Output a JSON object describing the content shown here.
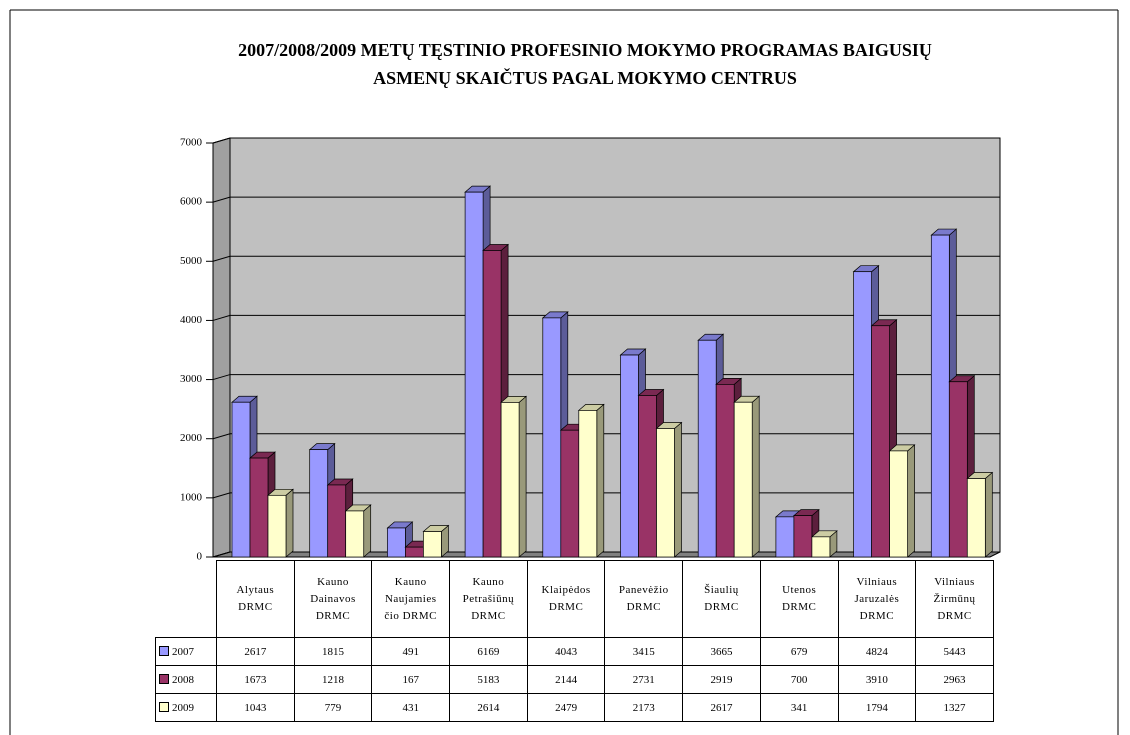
{
  "chart_data": {
    "type": "bar",
    "title": "2007/2008/2009 METŲ TĘSTINIO PROFESINIO MOKYMO PROGRAMAS BAIGUSIŲ\nASMENŲ SKAIČTUS PAGAL MOKYMO CENTRUS",
    "categories": [
      "Alytaus\nDRMC",
      "Kauno\nDainavos\nDRMC",
      "Kauno\nNaujamies\nčio DRMC",
      "Kauno\nPetrašiūnų\nDRMC",
      "Klaipėdos\nDRMC",
      "Panevėžio\nDRMC",
      "Šiaulių\nDRMC",
      "Utenos\nDRMC",
      "Vilniaus\nJaruzalės\nDRMC",
      "Vilniaus\nŽirmūnų\nDRMC"
    ],
    "series": [
      {
        "name": "2007",
        "color": "#9999ff",
        "values": [
          2617,
          1815,
          491,
          6169,
          4043,
          3415,
          3665,
          679,
          4824,
          5443
        ]
      },
      {
        "name": "2008",
        "color": "#993366",
        "values": [
          1673,
          1218,
          167,
          5183,
          2144,
          2731,
          2919,
          700,
          3910,
          2963
        ]
      },
      {
        "name": "2009",
        "color": "#ffffcc",
        "values": [
          1043,
          779,
          431,
          2614,
          2479,
          2173,
          2617,
          341,
          1794,
          1327
        ]
      }
    ],
    "ylim": [
      0,
      7000
    ],
    "yticks": [
      0,
      1000,
      2000,
      3000,
      4000,
      5000,
      6000,
      7000
    ],
    "grid": true
  }
}
